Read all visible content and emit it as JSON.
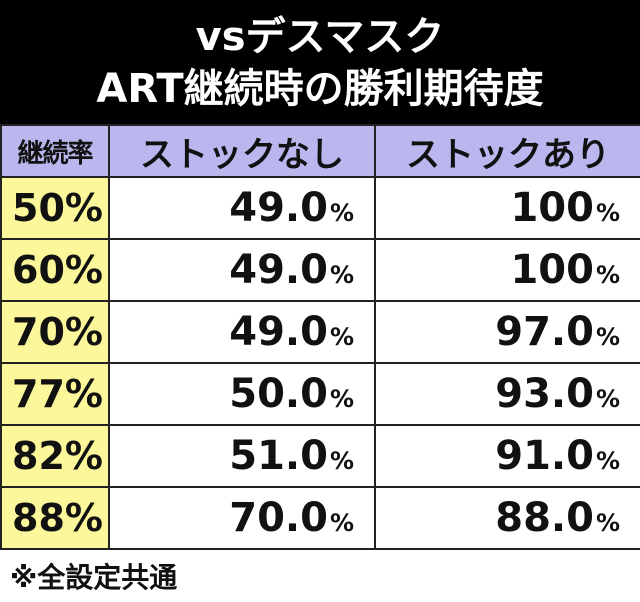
{
  "title": {
    "line1": "vsデスマスク",
    "line2": "ART継続時の勝利期待度"
  },
  "table": {
    "headers": [
      "継続率",
      "ストックなし",
      "ストックあり"
    ],
    "rows": [
      {
        "rate": "50%",
        "no_stock": "49.0",
        "with_stock": "100"
      },
      {
        "rate": "60%",
        "no_stock": "49.0",
        "with_stock": "100"
      },
      {
        "rate": "70%",
        "no_stock": "49.0",
        "with_stock": "97.0"
      },
      {
        "rate": "77%",
        "no_stock": "50.0",
        "with_stock": "93.0"
      },
      {
        "rate": "82%",
        "no_stock": "51.0",
        "with_stock": "91.0"
      },
      {
        "rate": "88%",
        "no_stock": "70.0",
        "with_stock": "88.0"
      }
    ],
    "percent_unit": "%"
  },
  "footnote": "※全設定共通",
  "colors": {
    "title_bg": "#000000",
    "header_bg": "#b9b7ee",
    "rate_bg": "#fbf79a",
    "cell_bg": "#ffffff",
    "border": "#222222"
  }
}
